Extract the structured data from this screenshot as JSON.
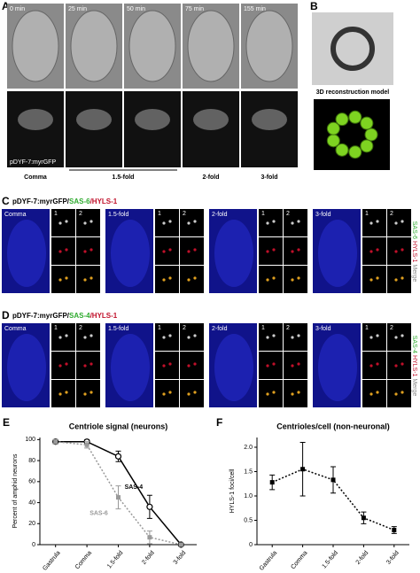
{
  "letters": [
    "A",
    "B",
    "C",
    "D",
    "E",
    "F"
  ],
  "panel_a": {
    "times": [
      "0 min",
      "25 min",
      "50 min",
      "75 min",
      "155 min"
    ],
    "reporter": "pDYF-7:myrGFP",
    "stages": [
      "Comma",
      "1.5-fold",
      "2-fold",
      "3-fold"
    ]
  },
  "panel_b": {
    "model_title": "3D reconstruction model"
  },
  "panel_c": {
    "title": [
      "pDYF-7:myrGFP/",
      "SAS-6",
      "/HYLS-1"
    ],
    "stages": [
      "Comma",
      "1.5-fold",
      "2-fold",
      "3-fold"
    ],
    "channels": [
      "SAS-6",
      "HYLS-1",
      "Merge"
    ]
  },
  "panel_d": {
    "title": [
      "pDYF-7:myrGFP/",
      "SAS-4",
      "/HYLS-1"
    ],
    "stages": [
      "Comma",
      "1.5-fold",
      "2-fold",
      "3-fold"
    ],
    "channels": [
      "SAS-4",
      "HYLS-1",
      "Merge"
    ]
  },
  "inset_labels": [
    "1",
    "2"
  ],
  "chart_data": [
    {
      "type": "line",
      "title": "Centriole signal (neurons)",
      "y_label": "Percent of amphid neurons",
      "categories": [
        "Gastrula",
        "Comma",
        "1.5-fold",
        "2-fold",
        "3-fold"
      ],
      "series": [
        {
          "name": "SAS-4",
          "color": "#000000",
          "dash": false,
          "marker": "circle",
          "values": [
            98,
            98,
            84,
            36,
            0
          ],
          "errors": [
            2,
            2,
            5,
            11,
            0
          ]
        },
        {
          "name": "SAS-6",
          "color": "#999999",
          "dash": true,
          "marker": "square",
          "values": [
            98,
            95,
            45,
            7,
            0
          ],
          "errors": [
            2,
            3,
            11,
            6,
            0
          ]
        }
      ],
      "ylim": [
        0,
        102
      ],
      "yticks": [
        0,
        20,
        40,
        60,
        80,
        100
      ]
    },
    {
      "type": "line",
      "title": "Centrioles/cell (non-neuronal)",
      "y_label": "HYLS-1 foci/cell",
      "categories": [
        "Gastrula",
        "Comma",
        "1.5-fold",
        "2-fold",
        "3-fold"
      ],
      "series": [
        {
          "color": "#000000",
          "dash": true,
          "marker": "square",
          "values": [
            1.28,
            1.55,
            1.33,
            0.55,
            0.3
          ],
          "errors": [
            0.15,
            0.55,
            0.27,
            0.12,
            0.07
          ]
        }
      ],
      "ylim": [
        0,
        2.2
      ],
      "yticks": [
        0,
        0.5,
        {
          "value": 1,
          "label": "1.0"
        },
        1.5,
        {
          "value": 2,
          "label": "2.0"
        }
      ]
    }
  ]
}
